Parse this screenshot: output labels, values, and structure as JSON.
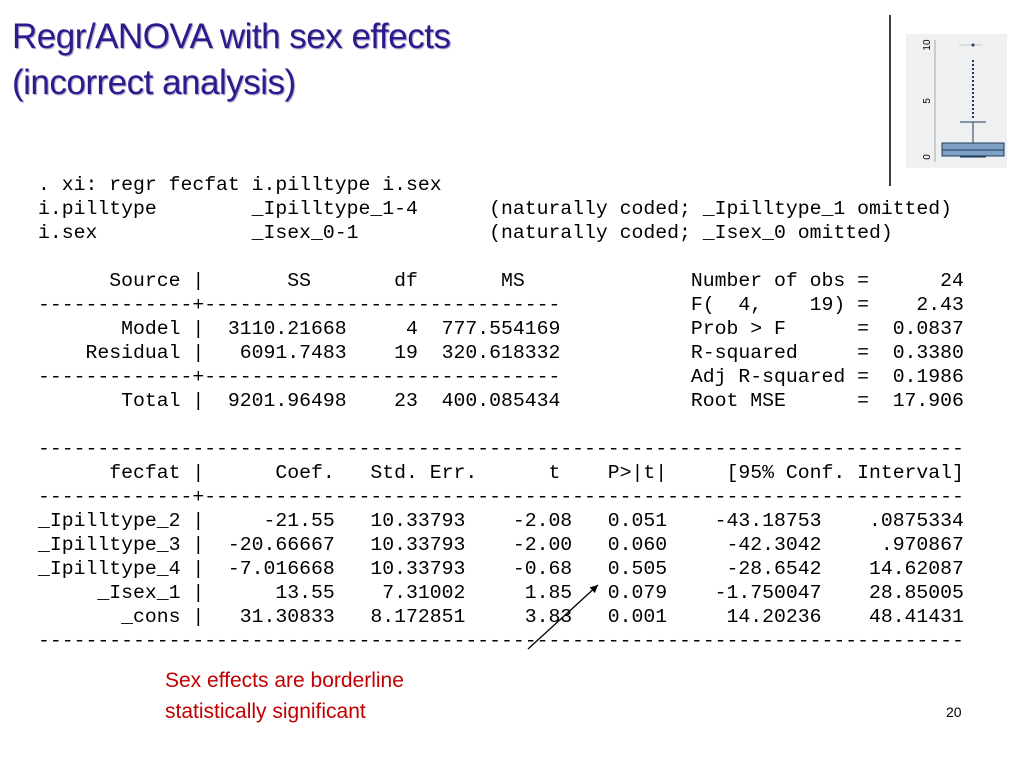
{
  "slide": {
    "title_lines": [
      "Regr/ANOVA with sex effects",
      "(incorrect analysis)"
    ],
    "inset": {
      "axis_labels": [
        "0",
        "5",
        "10"
      ]
    },
    "output_blocks": [
      [
        ". xi: regr fecfat i.pilltype i.sex",
        "i.pilltype        _Ipilltype_1-4      (naturally coded; _Ipilltype_1 omitted)",
        "i.sex             _Isex_0-1           (naturally coded; _Isex_0 omitted)"
      ],
      [
        "      Source |       SS       df       MS              Number of obs =      24",
        "-------------+------------------------------           F(  4,    19) =    2.43",
        "       Model |  3110.21668     4  777.554169           Prob > F      =  0.0837",
        "    Residual |   6091.7483    19  320.618332           R-squared     =  0.3380",
        "-------------+------------------------------           Adj R-squared =  0.1986",
        "       Total |  9201.96498    23  400.085434           Root MSE      =  17.906"
      ],
      [
        "------------------------------------------------------------------------------",
        "      fecfat |      Coef.   Std. Err.      t    P>|t|     [95% Conf. Interval]",
        "-------------+----------------------------------------------------------------",
        "_Ipilltype_2 |     -21.55   10.33793    -2.08   0.051    -43.18753    .0875334",
        "_Ipilltype_3 |  -20.66667   10.33793    -2.00   0.060     -42.3042     .970867",
        "_Ipilltype_4 |  -7.016668   10.33793    -0.68   0.505     -28.6542    14.62087",
        "     _Isex_1 |      13.55    7.31002     1.85   0.079    -1.750047    28.85005",
        "       _cons |   31.30833   8.172851     3.83   0.001     14.20236    48.41431",
        "------------------------------------------------------------------------------"
      ]
    ],
    "annotation_lines": [
      "Sex effects are borderline",
      "statistically significant"
    ],
    "page_number": "20"
  }
}
